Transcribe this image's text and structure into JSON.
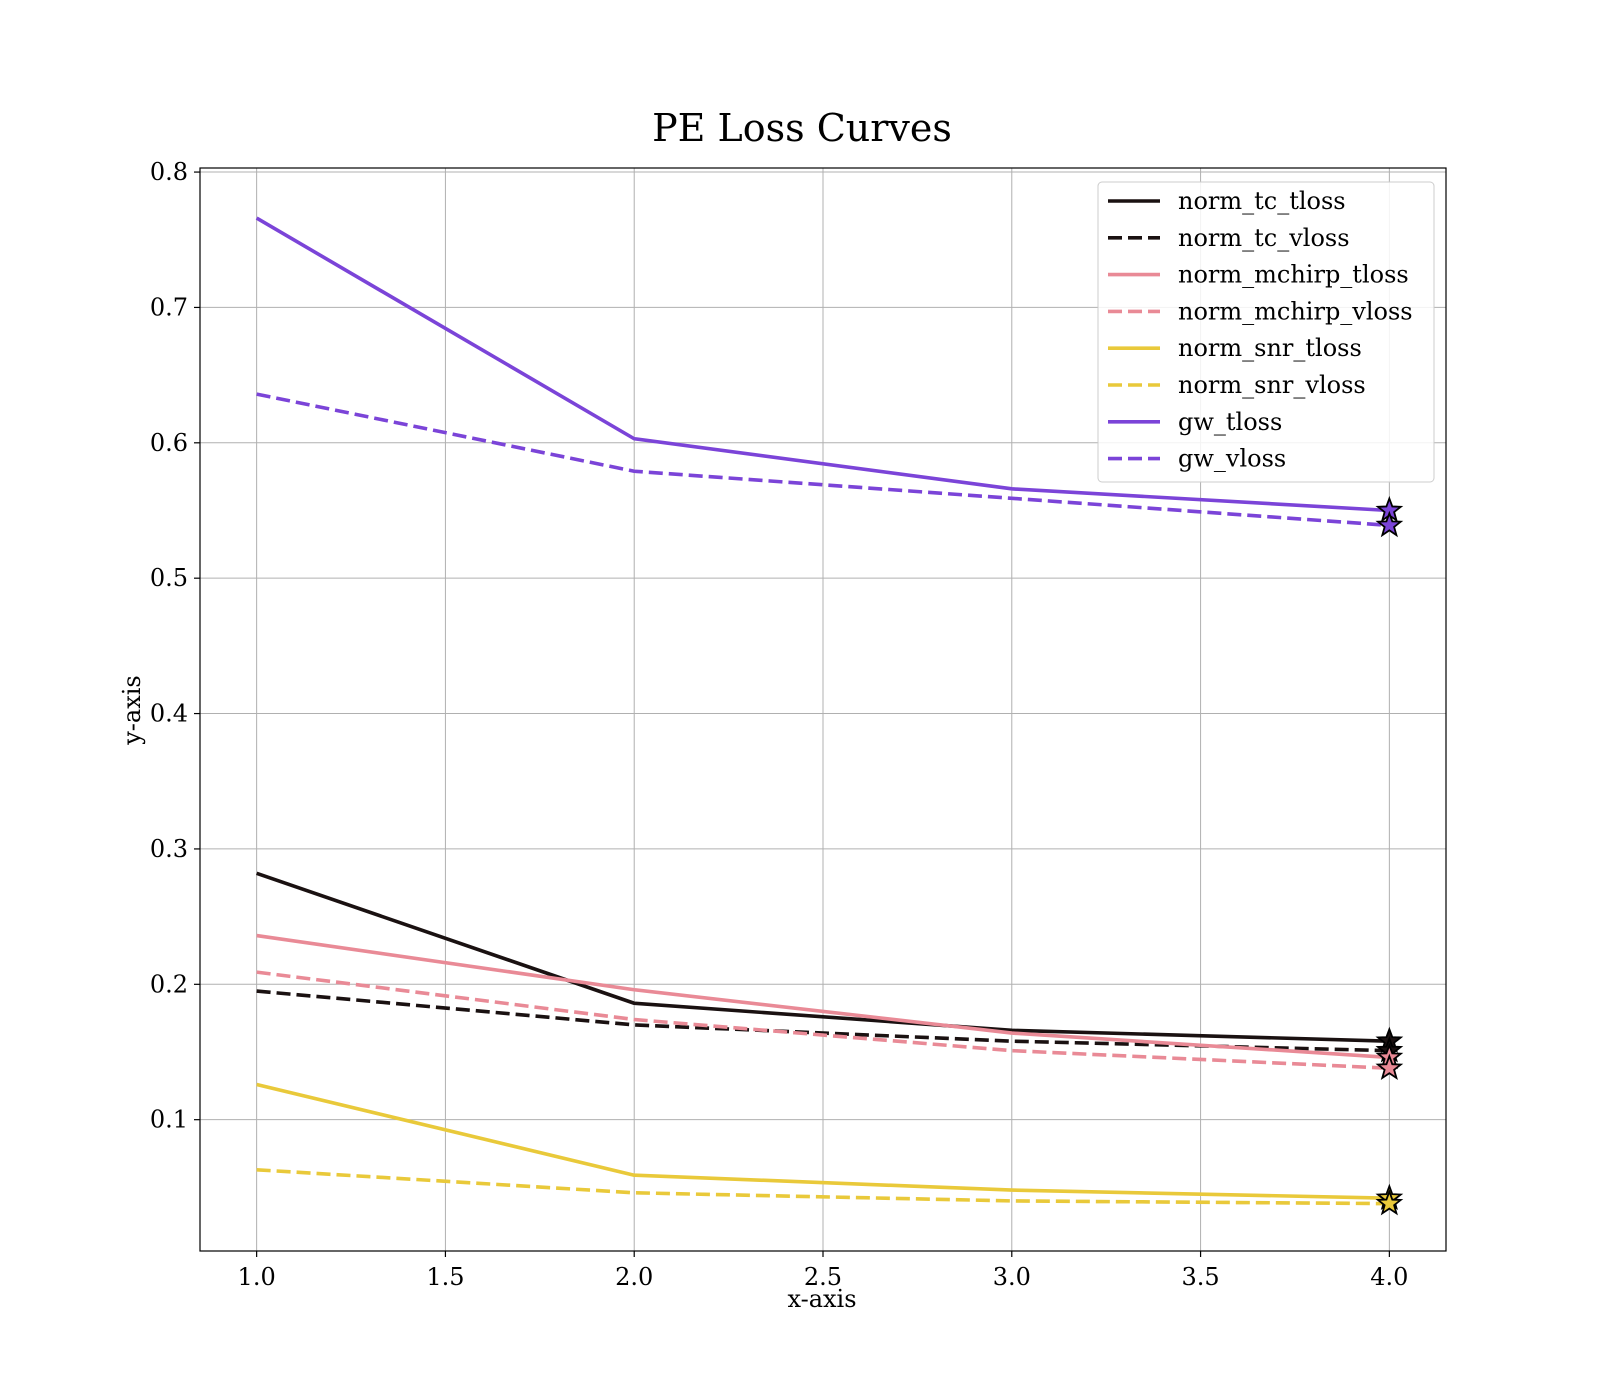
{
  "chart_data": {
    "type": "line",
    "title": "PE Loss Curves",
    "xlabel": "x-axis",
    "ylabel": "y-axis",
    "xlim": [
      0.85,
      4.15
    ],
    "ylim": [
      0.003,
      0.803
    ],
    "xticks": [
      1.0,
      1.5,
      2.0,
      2.5,
      3.0,
      3.5,
      4.0
    ],
    "xtick_labels": [
      "1.0",
      "1.5",
      "2.0",
      "2.5",
      "3.0",
      "3.5",
      "4.0"
    ],
    "yticks": [
      0.1,
      0.2,
      0.3,
      0.4,
      0.5,
      0.6,
      0.7,
      0.8
    ],
    "ytick_labels": [
      "0.1",
      "0.2",
      "0.3",
      "0.4",
      "0.5",
      "0.6",
      "0.7",
      "0.8"
    ],
    "grid": true,
    "legend_position": "top-right",
    "end_marker": "star",
    "x": [
      1,
      2,
      3,
      4
    ],
    "series": [
      {
        "name": "norm_tc_tloss",
        "color": "#1a1111",
        "dash": "solid",
        "values": [
          0.282,
          0.186,
          0.166,
          0.158
        ]
      },
      {
        "name": "norm_tc_vloss",
        "color": "#1a1111",
        "dash": "dashed",
        "values": [
          0.195,
          0.17,
          0.158,
          0.151
        ]
      },
      {
        "name": "norm_mchirp_tloss",
        "color": "#e98a96",
        "dash": "solid",
        "values": [
          0.236,
          0.196,
          0.164,
          0.146
        ]
      },
      {
        "name": "norm_mchirp_vloss",
        "color": "#e98a96",
        "dash": "dashed",
        "values": [
          0.209,
          0.174,
          0.151,
          0.138
        ]
      },
      {
        "name": "norm_snr_tloss",
        "color": "#e9c93a",
        "dash": "solid",
        "values": [
          0.126,
          0.059,
          0.048,
          0.042
        ]
      },
      {
        "name": "norm_snr_vloss",
        "color": "#e9c93a",
        "dash": "dashed",
        "values": [
          0.063,
          0.046,
          0.04,
          0.038
        ]
      },
      {
        "name": "gw_tloss",
        "color": "#7b44d8",
        "dash": "solid",
        "values": [
          0.766,
          0.603,
          0.566,
          0.55
        ]
      },
      {
        "name": "gw_vloss",
        "color": "#7b44d8",
        "dash": "dashed",
        "values": [
          0.636,
          0.579,
          0.559,
          0.539
        ]
      }
    ]
  }
}
